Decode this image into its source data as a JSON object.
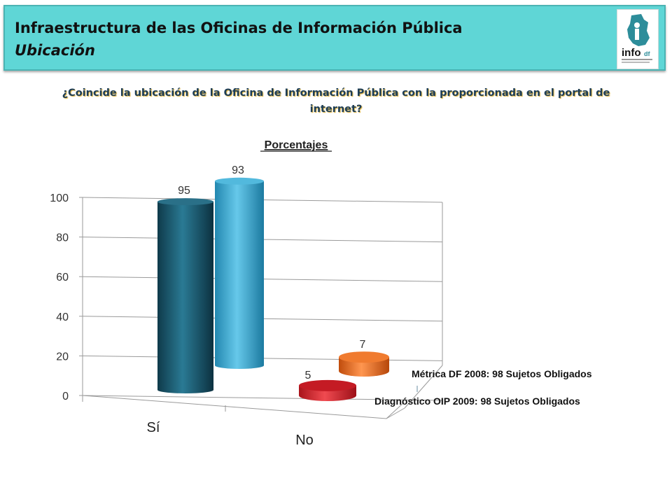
{
  "header": {
    "title": "Infraestructura de las Oficinas de Información Pública",
    "subtitle": "Ubicación",
    "logo_text": "info",
    "logo_suffix": "df"
  },
  "question": "¿Coincide la ubicación de la Oficina de Información Pública con la proporcionada en el portal de internet?",
  "colors": {
    "header_bg": "#5fd6d6",
    "dark_blue": "#1b5a70",
    "light_blue": "#3aa8cf",
    "red": "#d8222b",
    "orange": "#ee6b1a"
  },
  "chart_data": {
    "type": "bar",
    "title": "Porcentajes",
    "categories": [
      "Sí",
      "No"
    ],
    "yticks": [
      "0",
      "20",
      "40",
      "60",
      "80",
      "100"
    ],
    "ylim": [
      0,
      100
    ],
    "grid": true,
    "legend_position": "right",
    "series": [
      {
        "name": "Diagnóstico OIP 2009: 98 Sujetos Obligados",
        "values": [
          95,
          5
        ]
      },
      {
        "name": "Métrica DF 2008: 98 Sujetos Obligados",
        "values": [
          93,
          7
        ]
      }
    ]
  }
}
